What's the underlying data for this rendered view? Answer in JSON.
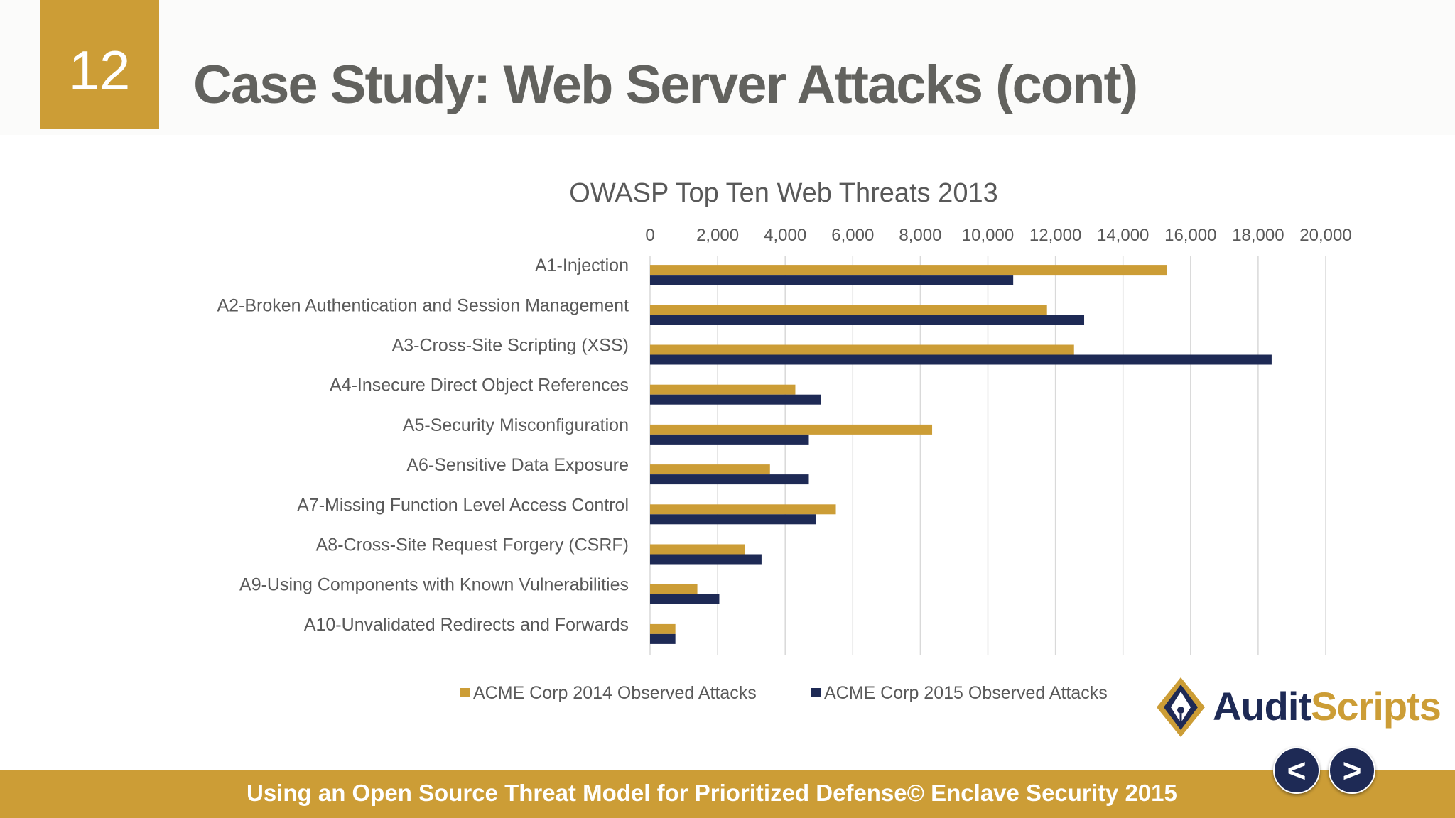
{
  "slide": {
    "number": "12",
    "title": "Case Study: Web Server Attacks (cont)"
  },
  "footer": {
    "text": "Using an Open Source Threat Model for Prioritized Defense© Enclave Security 2015",
    "prev_label": "<",
    "next_label": ">"
  },
  "logo": {
    "part1": "Audit",
    "part2": "Scripts"
  },
  "colors": {
    "accent_gold": "#cc9d36",
    "navy": "#1e2a55",
    "title_gray": "#62625e"
  },
  "chart_data": {
    "type": "bar",
    "orientation": "horizontal",
    "title": "OWASP Top Ten Web Threats 2013",
    "categories": [
      "A1-Injection",
      "A2-Broken Authentication and Session Management",
      "A3-Cross-Site Scripting (XSS)",
      "A4-Insecure Direct Object References",
      "A5-Security Misconfiguration",
      "A6-Sensitive Data Exposure",
      "A7-Missing Function Level Access Control",
      "A8-Cross-Site Request Forgery (CSRF)",
      "A9-Using Components with Known Vulnerabilities",
      "A10-Unvalidated Redirects and Forwards"
    ],
    "series": [
      {
        "name": "ACME Corp 2014 Observed Attacks",
        "color": "#cc9d36",
        "values": [
          15300,
          11750,
          12550,
          4300,
          8350,
          3550,
          5500,
          2800,
          1400,
          750
        ]
      },
      {
        "name": "ACME Corp 2015 Observed Attacks",
        "color": "#1e2a55",
        "values": [
          10750,
          12850,
          18400,
          5050,
          4700,
          4700,
          4900,
          3300,
          2050,
          750
        ]
      }
    ],
    "xlim": [
      0,
      20000
    ],
    "xticks": [
      0,
      2000,
      4000,
      6000,
      8000,
      10000,
      12000,
      14000,
      16000,
      18000,
      20000
    ],
    "xtick_labels": [
      "0",
      "2,000",
      "4,000",
      "6,000",
      "8,000",
      "10,000",
      "12,000",
      "14,000",
      "16,000",
      "18,000",
      "20,000"
    ],
    "xaxis_position": "top",
    "grid": true,
    "legend": "bottom"
  }
}
